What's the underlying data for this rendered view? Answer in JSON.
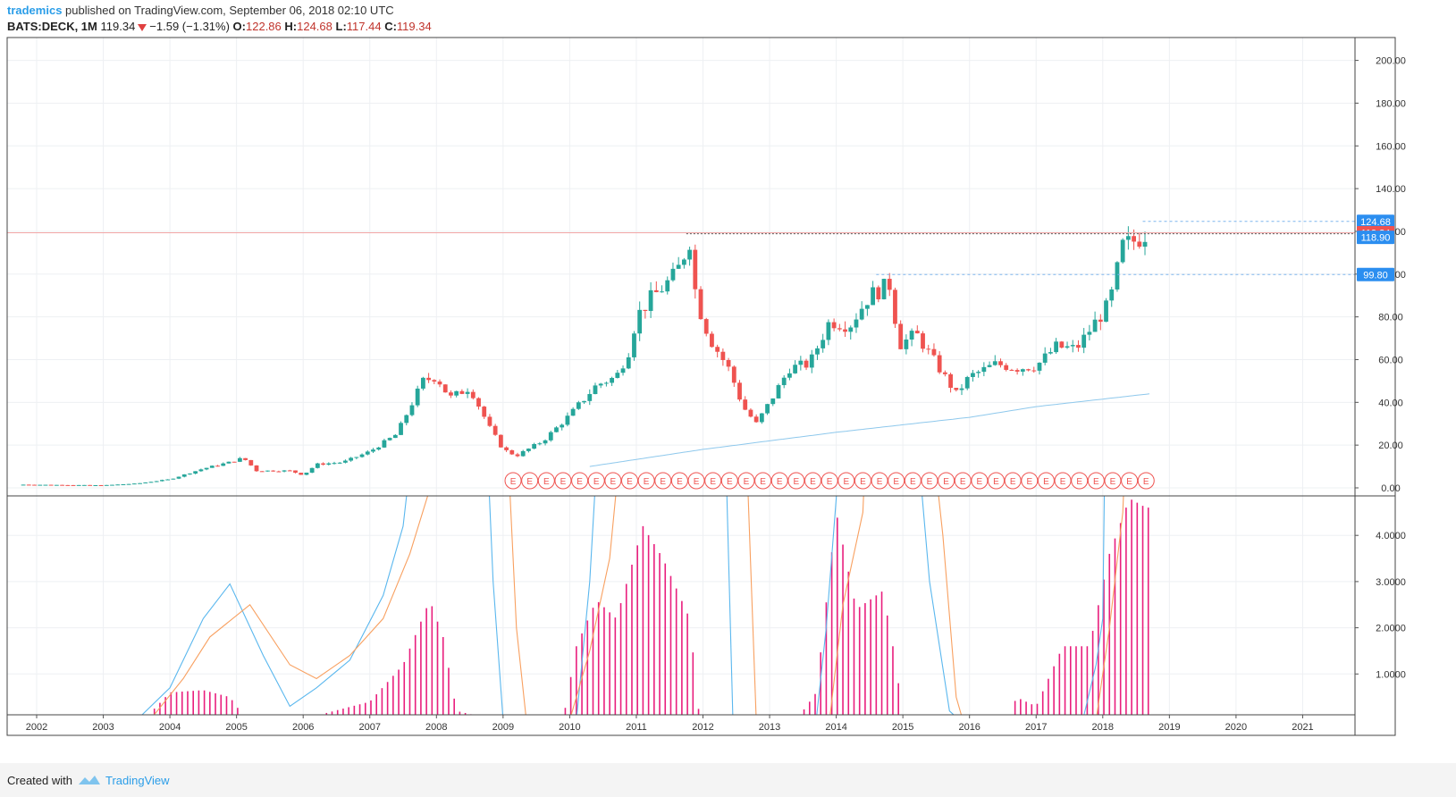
{
  "header": {
    "username": "trademics",
    "published": "published on TradingView.com, September 06, 2018 02:10 UTC",
    "symbol": "BATS:DECK, 1M",
    "last": "119.34",
    "change": "−1.59 (−1.31%)",
    "open_label": "O:",
    "open": "122.86",
    "high_label": "H:",
    "high": "124.68",
    "low_label": "L:",
    "low": "117.44",
    "close_label": "C:",
    "close": "119.34"
  },
  "footer": {
    "created_with": "Created with",
    "brand": "TradingView"
  },
  "colors": {
    "up": "#26a69a",
    "down": "#ef5350",
    "ma": "#8ec8ec",
    "hist": "#e91e7d",
    "osc_blue": "#5ab7ee",
    "osc_orange": "#f8a060",
    "tag_blue": "#2b8ef0",
    "tag_red": "#ef5350"
  },
  "chart_data": {
    "type": "candlestick",
    "price_ylim": [
      0,
      210
    ],
    "price_ticks": [
      "200.00",
      "180.00",
      "160.00",
      "140.00",
      "120.00",
      "100.00",
      "80.00",
      "60.00",
      "40.00",
      "20.00",
      "0.00"
    ],
    "osc_ticks": [
      "4.0000",
      "3.0000",
      "2.0000",
      "1.0000"
    ],
    "x_ticks": [
      "2002",
      "2003",
      "2004",
      "2005",
      "2006",
      "2007",
      "2008",
      "2009",
      "2010",
      "2011",
      "2012",
      "2013",
      "2014",
      "2015",
      "2016",
      "2017",
      "2018",
      "2019",
      "2020",
      "2021"
    ],
    "price_tags": [
      {
        "label": "124.68",
        "value": 124.68,
        "color": "blue"
      },
      {
        "label": "119.34",
        "value": 119.34,
        "color": "red"
      },
      {
        "label": "118.90",
        "value": 118.9,
        "color": "blue"
      },
      {
        "label": "99.80",
        "value": 99.8,
        "color": "blue"
      }
    ],
    "earnings_marker": "E",
    "close_anchors": [
      [
        2001.8,
        1.5
      ],
      [
        2003.0,
        1.2
      ],
      [
        2003.5,
        2
      ],
      [
        2004.0,
        4
      ],
      [
        2004.5,
        9
      ],
      [
        2004.9,
        12
      ],
      [
        2005.1,
        14
      ],
      [
        2005.3,
        8
      ],
      [
        2005.8,
        8
      ],
      [
        2006.0,
        6
      ],
      [
        2006.2,
        11
      ],
      [
        2006.6,
        12
      ],
      [
        2007.0,
        17
      ],
      [
        2007.4,
        25
      ],
      [
        2007.8,
        50
      ],
      [
        2008.0,
        52
      ],
      [
        2008.2,
        42
      ],
      [
        2008.5,
        47
      ],
      [
        2008.8,
        28
      ],
      [
        2009.0,
        18
      ],
      [
        2009.2,
        15
      ],
      [
        2009.6,
        22
      ],
      [
        2010.0,
        34
      ],
      [
        2010.4,
        48
      ],
      [
        2010.7,
        52
      ],
      [
        2010.9,
        65
      ],
      [
        2011.0,
        80
      ],
      [
        2011.2,
        88
      ],
      [
        2011.6,
        100
      ],
      [
        2011.8,
        116
      ],
      [
        2011.9,
        88
      ],
      [
        2012.1,
        70
      ],
      [
        2012.4,
        55
      ],
      [
        2012.6,
        38
      ],
      [
        2012.8,
        30
      ],
      [
        2013.0,
        40
      ],
      [
        2013.3,
        56
      ],
      [
        2013.6,
        58
      ],
      [
        2013.9,
        78
      ],
      [
        2014.2,
        76
      ],
      [
        2014.5,
        90
      ],
      [
        2014.8,
        95
      ],
      [
        2014.95,
        67
      ],
      [
        2015.2,
        72
      ],
      [
        2015.5,
        58
      ],
      [
        2015.8,
        44
      ],
      [
        2016.0,
        52
      ],
      [
        2016.4,
        58
      ],
      [
        2016.7,
        56
      ],
      [
        2017.0,
        57
      ],
      [
        2017.3,
        66
      ],
      [
        2017.6,
        65
      ],
      [
        2017.9,
        78
      ],
      [
        2018.1,
        86
      ],
      [
        2018.3,
        113
      ],
      [
        2018.5,
        116
      ],
      [
        2018.65,
        119.34
      ]
    ],
    "ma_line": [
      [
        2010.3,
        10
      ],
      [
        2012.0,
        18
      ],
      [
        2014.0,
        26
      ],
      [
        2016.0,
        33
      ],
      [
        2017.0,
        38
      ],
      [
        2018.7,
        44
      ]
    ],
    "hist_anchors": [
      [
        2003.6,
        0
      ],
      [
        2004.0,
        0.6
      ],
      [
        2004.5,
        0.65
      ],
      [
        2004.9,
        0.5
      ],
      [
        2005.1,
        0.1
      ],
      [
        2005.6,
        0
      ],
      [
        2006.2,
        0.1
      ],
      [
        2007.0,
        0.4
      ],
      [
        2007.5,
        1.2
      ],
      [
        2007.9,
        2.6
      ],
      [
        2008.1,
        1.8
      ],
      [
        2008.3,
        0.2
      ],
      [
        2008.6,
        0.1
      ],
      [
        2008.8,
        0
      ],
      [
        2009.9,
        0
      ],
      [
        2010.1,
        1.6
      ],
      [
        2010.4,
        2.6
      ],
      [
        2010.7,
        2.2
      ],
      [
        2011.1,
        4.2
      ],
      [
        2011.4,
        3.5
      ],
      [
        2011.8,
        2.2
      ],
      [
        2011.95,
        0
      ],
      [
        2013.4,
        0
      ],
      [
        2013.7,
        0.6
      ],
      [
        2014.0,
        4.5
      ],
      [
        2014.3,
        2.4
      ],
      [
        2014.7,
        2.8
      ],
      [
        2014.9,
        1.2
      ],
      [
        2015.0,
        0
      ],
      [
        2016.6,
        0
      ],
      [
        2016.7,
        0.5
      ],
      [
        2017.0,
        0.3
      ],
      [
        2017.4,
        1.6
      ],
      [
        2017.8,
        1.6
      ],
      [
        2018.1,
        3.6
      ],
      [
        2018.4,
        4.8
      ],
      [
        2018.65,
        4.6
      ]
    ],
    "osc_blue": [
      [
        2003.5,
        0
      ],
      [
        2004.0,
        0.7
      ],
      [
        2004.5,
        2.2
      ],
      [
        2004.9,
        2.95
      ],
      [
        2005.4,
        1.4
      ],
      [
        2005.8,
        0.3
      ],
      [
        2006.2,
        0.7
      ],
      [
        2006.7,
        1.3
      ],
      [
        2007.2,
        2.7
      ],
      [
        2007.5,
        4.2
      ],
      [
        2007.8,
        8
      ],
      null,
      [
        2008.7,
        8
      ],
      [
        2008.85,
        3
      ],
      [
        2009.0,
        0
      ],
      null,
      [
        2010.1,
        0
      ],
      [
        2010.3,
        3
      ],
      [
        2010.5,
        8
      ],
      null,
      [
        2012.3,
        8
      ],
      [
        2012.45,
        0
      ],
      null,
      [
        2013.7,
        0
      ],
      [
        2013.85,
        2
      ],
      [
        2014.0,
        4.8
      ],
      [
        2014.1,
        8
      ],
      null,
      [
        2015.1,
        8
      ],
      [
        2015.4,
        3
      ],
      [
        2015.7,
        0.2
      ],
      [
        2015.85,
        0
      ],
      null,
      [
        2017.7,
        0
      ],
      [
        2017.9,
        1.2
      ],
      [
        2018.0,
        2.2
      ],
      [
        2018.05,
        8
      ]
    ],
    "osc_orange": [
      [
        2003.7,
        0
      ],
      [
        2004.2,
        0.9
      ],
      [
        2004.6,
        1.8
      ],
      [
        2005.2,
        2.5
      ],
      [
        2005.8,
        1.2
      ],
      [
        2006.2,
        0.9
      ],
      [
        2006.7,
        1.4
      ],
      [
        2007.2,
        2.2
      ],
      [
        2007.6,
        3.6
      ],
      [
        2007.9,
        5
      ],
      [
        2008.0,
        8
      ],
      null,
      [
        2009.0,
        8
      ],
      [
        2009.2,
        2
      ],
      [
        2009.35,
        0
      ],
      null,
      [
        2010.0,
        0
      ],
      [
        2010.3,
        1.5
      ],
      [
        2010.6,
        3.5
      ],
      [
        2010.9,
        8
      ],
      null,
      [
        2012.6,
        8
      ],
      [
        2012.8,
        0
      ],
      null,
      [
        2013.9,
        0
      ],
      [
        2014.1,
        2.5
      ],
      [
        2014.4,
        4.5
      ],
      [
        2014.5,
        8
      ],
      null,
      [
        2015.3,
        8
      ],
      [
        2015.6,
        4
      ],
      [
        2015.8,
        0.5
      ],
      [
        2015.9,
        0
      ],
      null,
      [
        2017.9,
        0
      ],
      [
        2018.1,
        2
      ],
      [
        2018.3,
        4.5
      ],
      [
        2018.4,
        8
      ]
    ],
    "earnings_range": [
      2009.15,
      2018.75
    ]
  }
}
